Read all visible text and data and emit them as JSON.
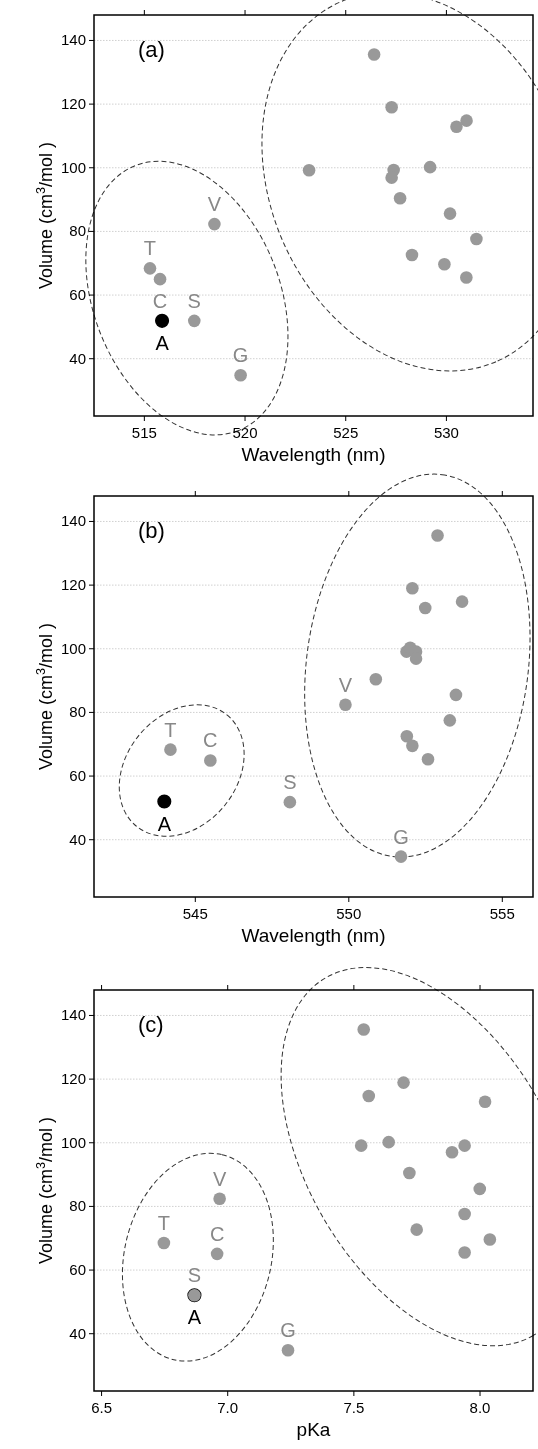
{
  "chart_data": [
    {
      "type": "scatter",
      "title": "(a)",
      "xlabel": "Wavelength (nm)",
      "ylabel": "Volume (cm$^{3}$/mol )",
      "xlim": [
        512.5,
        534.3
      ],
      "ylim": [
        22,
        148
      ],
      "xticks": [
        515,
        520,
        525,
        530
      ],
      "yticks": [
        40,
        60,
        80,
        100,
        120,
        140
      ],
      "grid": "y",
      "marker": "circle",
      "series": [
        {
          "color": "#000000",
          "x": [
            515.88
          ],
          "values": [
            51.9
          ]
        },
        {
          "color": "#999999",
          "x": [
            515.28,
            515.78,
            517.48,
            518.48,
            519.78
          ],
          "values": [
            68.4,
            65.0,
            51.9,
            82.3,
            34.8
          ]
        },
        {
          "color": "#999999",
          "x": [
            526.41,
            527.28,
            531.0,
            530.5,
            523.18,
            527.38,
            527.28,
            529.19,
            527.7,
            530.18,
            531.49,
            528.29,
            529.9,
            530.99
          ],
          "values": [
            135.6,
            119.0,
            114.8,
            112.9,
            99.2,
            99.3,
            96.9,
            100.2,
            90.4,
            85.6,
            77.6,
            72.6,
            69.7,
            65.5
          ]
        }
      ],
      "annotations": [
        {
          "text": "A",
          "x": 515.88,
          "y": 51.9
        },
        {
          "text": "T",
          "x": 515.28,
          "y": 68.4
        },
        {
          "text": "C",
          "x": 515.78,
          "y": 65.0
        },
        {
          "text": "S",
          "x": 517.48,
          "y": 51.9
        },
        {
          "text": "V",
          "x": 518.48,
          "y": 82.3
        },
        {
          "text": "G",
          "x": 519.78,
          "y": 34.8
        }
      ]
    },
    {
      "type": "scatter",
      "title": "(b)",
      "xlabel": "Wavelength (nm)",
      "ylabel": "Volume (cm$^{3}$/mol )",
      "xlim": [
        541.7,
        556
      ],
      "ylim": [
        22,
        148
      ],
      "xticks": [
        545,
        550,
        555
      ],
      "yticks": [
        40,
        60,
        80,
        100,
        120,
        140
      ],
      "grid": "y",
      "marker": "circle",
      "series": [
        {
          "color": "#000000",
          "x": [
            543.99
          ],
          "values": [
            52.0
          ]
        },
        {
          "color": "#999999",
          "x": [
            544.19,
            545.49
          ],
          "values": [
            68.3,
            64.9
          ]
        },
        {
          "color": "#999999",
          "x": [
            549.89,
            552.89,
            552.07,
            552.49,
            553.69,
            551.88,
            552.0,
            552.19,
            552.19,
            550.88,
            553.49,
            553.29,
            551.89,
            552.07,
            552.58
          ],
          "values": [
            82.4,
            135.6,
            119.0,
            112.8,
            114.8,
            99.1,
            100.3,
            99.1,
            96.9,
            90.4,
            85.5,
            77.5,
            72.5,
            69.5,
            65.3
          ]
        },
        {
          "color": "#999999",
          "x": [
            548.08,
            551.7
          ],
          "values": [
            51.8,
            34.7
          ]
        }
      ],
      "annotations": [
        {
          "text": "A",
          "x": 543.99,
          "y": 52.0
        },
        {
          "text": "T",
          "x": 544.19,
          "y": 68.3
        },
        {
          "text": "C",
          "x": 545.49,
          "y": 64.9
        },
        {
          "text": "S",
          "x": 548.08,
          "y": 51.8
        },
        {
          "text": "V",
          "x": 549.89,
          "y": 82.4
        },
        {
          "text": "G",
          "x": 551.7,
          "y": 34.7
        }
      ]
    },
    {
      "type": "scatter",
      "title": "(c)",
      "xlabel": "pKa",
      "ylabel": "Volume (cm$^{3}$/mol )",
      "xlim": [
        6.47,
        8.21
      ],
      "ylim": [
        22,
        148
      ],
      "xticks": [
        {
          "value": 6.5,
          "label": "6.5"
        },
        {
          "value": 7,
          "label": "7.0"
        },
        {
          "value": 7.5,
          "label": "7.5"
        },
        {
          "value": 8,
          "label": "8.0"
        }
      ],
      "yticks": [
        40,
        60,
        80,
        100,
        120,
        140
      ],
      "grid": "y",
      "marker": "circle",
      "series": [
        {
          "color": "#8c8c8c",
          "x": [
            6.868
          ],
          "values": [
            52.1
          ]
        },
        {
          "color": "#999999",
          "x": [
            6.747,
            6.958,
            6.968,
            6.868
          ],
          "values": [
            68.5,
            65.1,
            82.4,
            52.1
          ]
        },
        {
          "color": "#999999",
          "x": [
            7.539,
            7.697,
            7.559,
            8.02,
            7.529,
            7.638,
            7.889,
            7.939,
            7.72,
            7.999,
            7.939,
            7.749,
            8.039,
            7.939
          ],
          "values": [
            135.6,
            118.9,
            114.7,
            112.9,
            99.1,
            100.2,
            97.0,
            99.1,
            90.5,
            85.5,
            77.6,
            72.7,
            69.6,
            65.5
          ]
        },
        {
          "color": "#999999",
          "x": [
            7.239
          ],
          "values": [
            34.8
          ]
        }
      ],
      "annotations": [
        {
          "text": "A",
          "x": 6.868,
          "y": 52.1
        },
        {
          "text": "T",
          "x": 6.747,
          "y": 68.5
        },
        {
          "text": "C",
          "x": 6.958,
          "y": 65.1
        },
        {
          "text": "S",
          "x": 6.868,
          "y": 52.1
        },
        {
          "text": "V",
          "x": 6.968,
          "y": 82.4
        },
        {
          "text": "G",
          "x": 7.239,
          "y": 34.8
        }
      ]
    }
  ]
}
